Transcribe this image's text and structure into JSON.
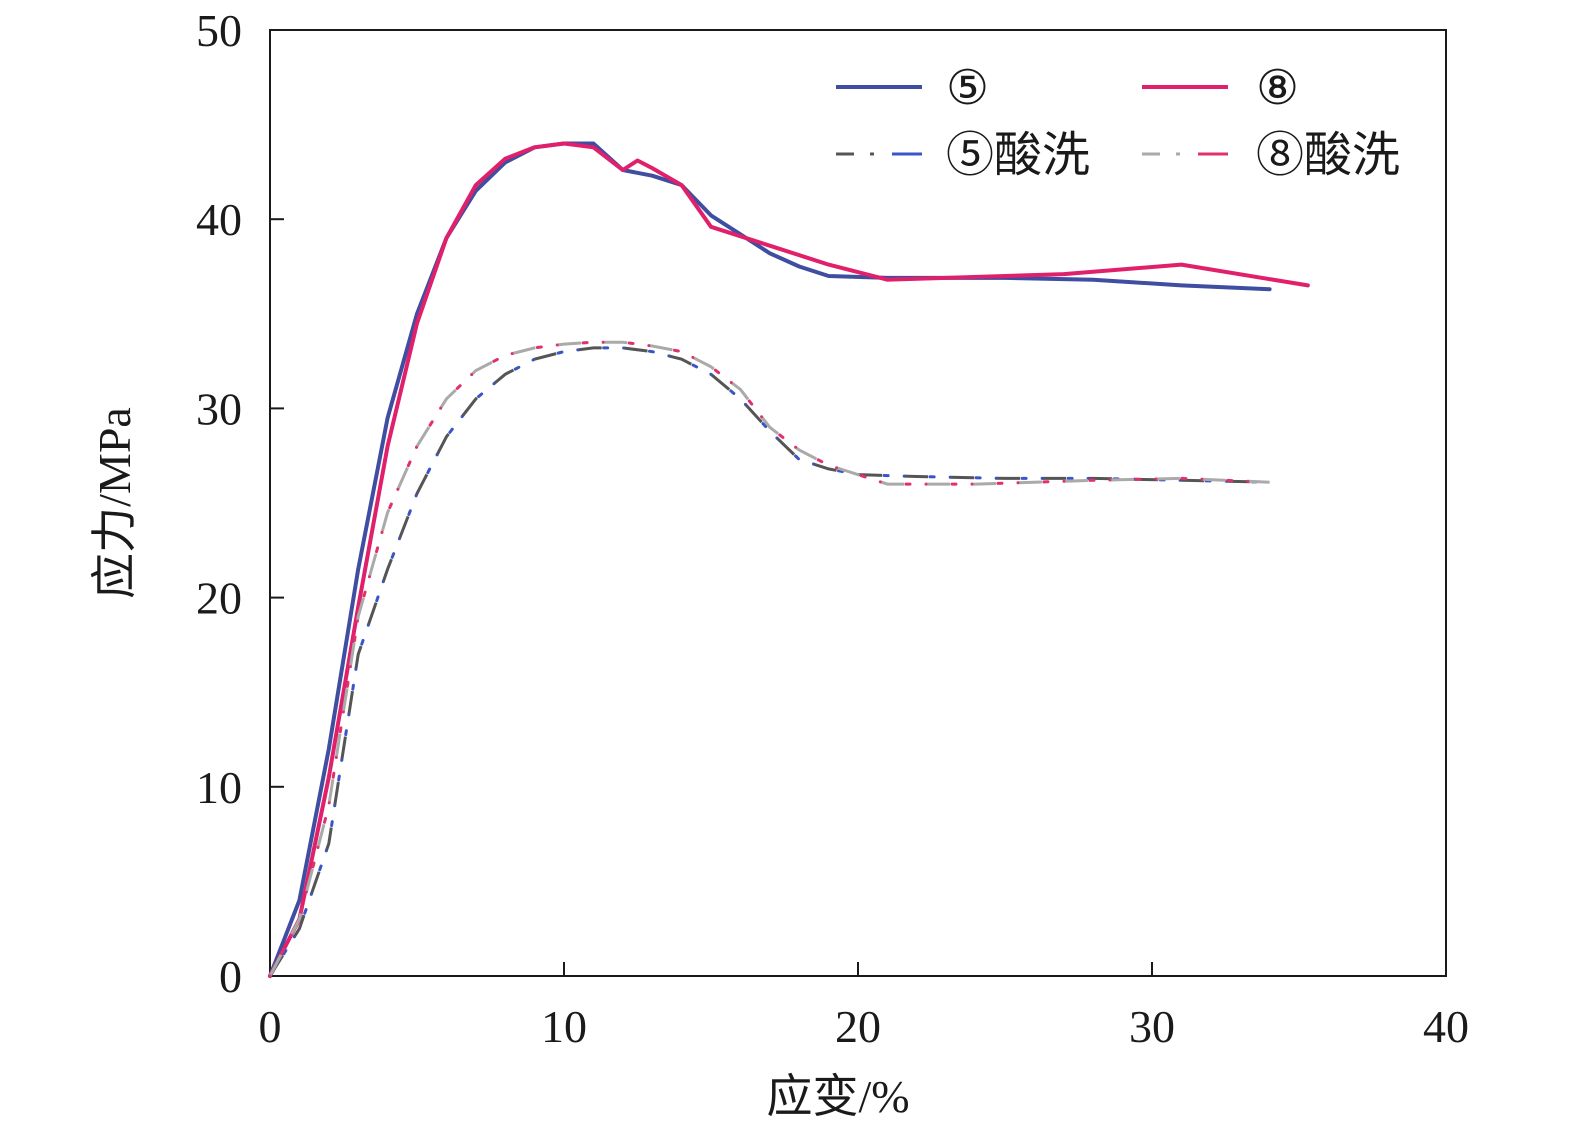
{
  "chart_data": {
    "type": "line",
    "xlabel": "应变/%",
    "ylabel": "应力/MPa",
    "xlim": [
      0,
      40
    ],
    "ylim": [
      0,
      50
    ],
    "xticks": [
      0,
      10,
      20,
      30,
      40
    ],
    "yticks": [
      0,
      10,
      20,
      30,
      40,
      50
    ],
    "grid": false,
    "legend_position": "top-right",
    "series": [
      {
        "name": "⑤",
        "style": "solid",
        "colors": [
          "#3f4ea0"
        ],
        "x": [
          0,
          1,
          2,
          3,
          4,
          5,
          6,
          7,
          8,
          9,
          10,
          11,
          12,
          13,
          14,
          15,
          16,
          17,
          18,
          19,
          21,
          25,
          28,
          31,
          34
        ],
        "y": [
          0,
          4.0,
          12.0,
          21.5,
          29.5,
          35.0,
          39.0,
          41.5,
          43.0,
          43.8,
          44.0,
          44.0,
          42.6,
          42.3,
          41.8,
          40.2,
          39.2,
          38.2,
          37.5,
          37.0,
          36.9,
          36.9,
          36.8,
          36.5,
          36.3
        ]
      },
      {
        "name": "⑧",
        "style": "solid",
        "colors": [
          "#e0206a"
        ],
        "x": [
          0,
          1,
          2,
          3,
          4,
          5,
          6,
          7,
          8,
          9,
          10,
          11,
          12,
          12.5,
          13,
          14,
          15,
          17,
          19,
          21,
          23,
          27,
          31,
          35.3
        ],
        "y": [
          0,
          3.0,
          10.5,
          19.5,
          28.0,
          34.5,
          39.0,
          41.8,
          43.2,
          43.8,
          44.0,
          43.8,
          42.6,
          43.1,
          42.7,
          41.8,
          39.6,
          38.6,
          37.6,
          36.8,
          36.9,
          37.1,
          37.6,
          36.5
        ]
      },
      {
        "name": "⑤酸洗",
        "style": "dash-dot",
        "colors": [
          "#555555",
          "#3a55c8"
        ],
        "x": [
          0,
          1,
          2,
          2.5,
          3,
          4,
          5,
          6,
          7,
          8,
          9,
          10,
          11,
          12,
          13,
          14,
          15,
          16,
          17,
          18,
          19,
          20,
          22,
          25,
          28,
          31,
          34
        ],
        "y": [
          0,
          2.5,
          7.0,
          12.0,
          17.0,
          21.5,
          25.5,
          28.5,
          30.5,
          31.8,
          32.6,
          33.0,
          33.2,
          33.2,
          33.0,
          32.6,
          31.8,
          30.5,
          28.8,
          27.3,
          26.8,
          26.5,
          26.4,
          26.3,
          26.3,
          26.2,
          26.1
        ]
      },
      {
        "name": "⑧酸洗",
        "style": "dash-dot",
        "colors": [
          "#aaaaaa",
          "#e0306e"
        ],
        "x": [
          0,
          1,
          2,
          2.5,
          3,
          4,
          5,
          6,
          7,
          8,
          9,
          10,
          11,
          12,
          13,
          14,
          15,
          16,
          17,
          18,
          19,
          21,
          24,
          28,
          31,
          34
        ],
        "y": [
          0,
          3.0,
          9.0,
          14.0,
          19.0,
          24.5,
          28.0,
          30.5,
          32.0,
          32.8,
          33.2,
          33.4,
          33.5,
          33.5,
          33.3,
          33.0,
          32.2,
          31.0,
          29.0,
          27.8,
          27.0,
          26.0,
          26.0,
          26.2,
          26.3,
          26.1
        ]
      }
    ]
  }
}
